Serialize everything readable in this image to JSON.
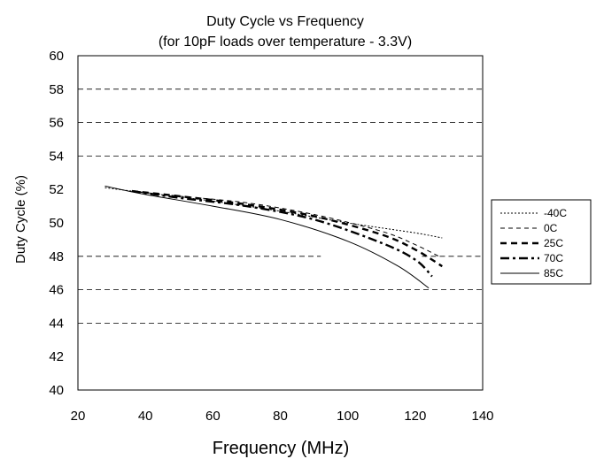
{
  "chart_data": {
    "type": "line",
    "title": "Duty Cycle vs Frequency",
    "subtitle": "(for 10pF loads over temperature - 3.3V)",
    "xlabel": "Frequency (MHz)",
    "ylabel": "Duty Cycle (%)",
    "xlim": [
      20,
      140
    ],
    "ylim": [
      40,
      60
    ],
    "xticks": [
      "20",
      "40",
      "60",
      "80",
      "100",
      "120",
      "140"
    ],
    "yticks": [
      "40",
      "42",
      "44",
      "46",
      "48",
      "50",
      "52",
      "54",
      "56",
      "58",
      "60"
    ],
    "grid": "horizontal dashed",
    "legend_position": "right",
    "series": [
      {
        "name": "-40C",
        "style": "dotted",
        "x": [
          28,
          40,
          60,
          80,
          100,
          120,
          128
        ],
        "y": [
          52.1,
          51.8,
          51.3,
          50.7,
          50.0,
          49.4,
          49.1
        ]
      },
      {
        "name": "0C",
        "style": "dashed",
        "x": [
          36,
          50,
          70,
          90,
          110,
          120,
          127
        ],
        "y": [
          51.9,
          51.6,
          51.2,
          50.5,
          49.5,
          48.7,
          48.0
        ]
      },
      {
        "name": "25C",
        "style": "bold-dashed",
        "x": [
          36,
          50,
          70,
          90,
          110,
          120,
          128
        ],
        "y": [
          51.9,
          51.6,
          51.1,
          50.4,
          49.3,
          48.4,
          47.4
        ]
      },
      {
        "name": "70C",
        "style": "bold-dash-dot",
        "x": [
          36,
          50,
          70,
          90,
          110,
          120,
          125
        ],
        "y": [
          51.9,
          51.5,
          51.0,
          50.2,
          48.8,
          47.8,
          46.8
        ]
      },
      {
        "name": "85C",
        "style": "solid",
        "x": [
          28,
          40,
          60,
          80,
          100,
          115,
          124
        ],
        "y": [
          52.2,
          51.7,
          51.0,
          50.2,
          48.9,
          47.4,
          46.1
        ]
      }
    ]
  }
}
